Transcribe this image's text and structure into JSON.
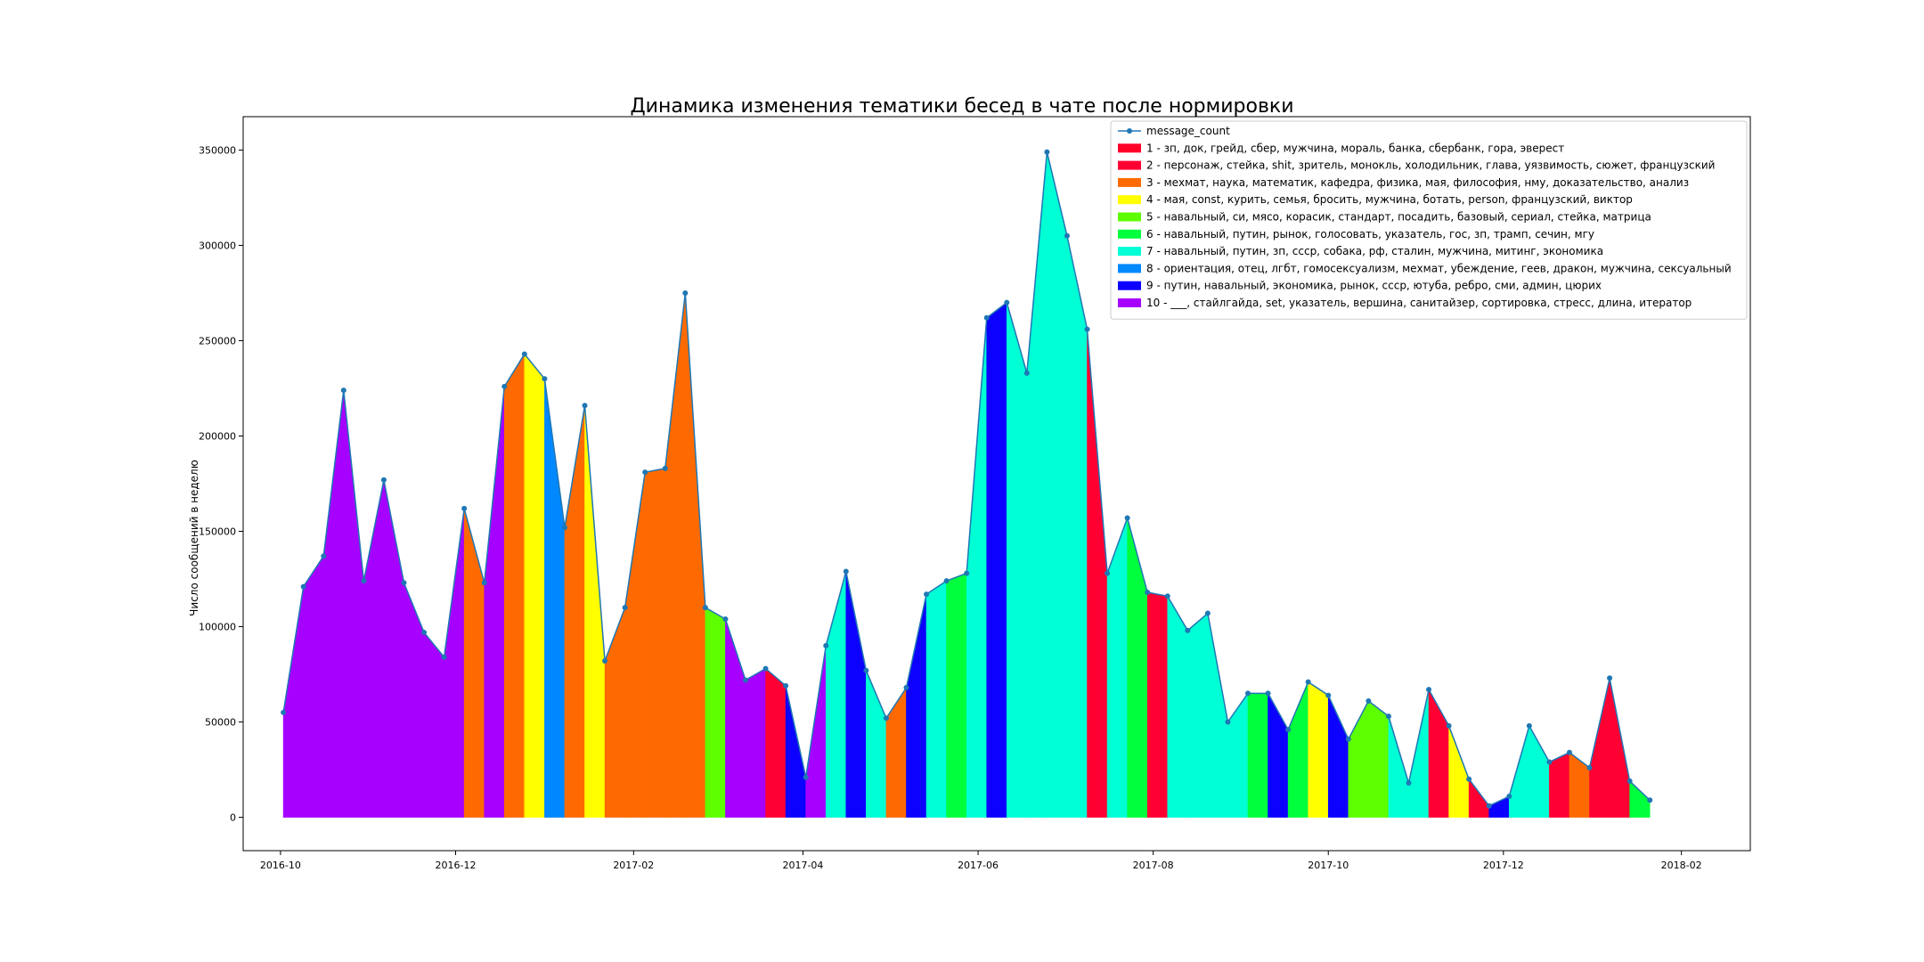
{
  "chart_data": {
    "type": "area",
    "title": "Динамика изменения тематики бесед в чате после нормировки",
    "xlabel": "",
    "ylabel": "Число сообщений в неделю",
    "x_start_date": "2016-10-02",
    "x_step_days": 7,
    "xlim": [
      "2016-09-18",
      "2018-02-25"
    ],
    "ylim": [
      -17500,
      367500
    ],
    "xticks": [
      {
        "date": "2016-10-01",
        "label": "2016-10"
      },
      {
        "date": "2016-12-01",
        "label": "2016-12"
      },
      {
        "date": "2017-02-01",
        "label": "2017-02"
      },
      {
        "date": "2017-04-01",
        "label": "2017-04"
      },
      {
        "date": "2017-06-01",
        "label": "2017-06"
      },
      {
        "date": "2017-08-01",
        "label": "2017-08"
      },
      {
        "date": "2017-10-01",
        "label": "2017-10"
      },
      {
        "date": "2017-12-01",
        "label": "2017-12"
      },
      {
        "date": "2018-02-01",
        "label": "2018-02"
      }
    ],
    "yticks": [
      {
        "value": 0,
        "label": "0"
      },
      {
        "value": 50000,
        "label": "50000"
      },
      {
        "value": 100000,
        "label": "100000"
      },
      {
        "value": 150000,
        "label": "150000"
      },
      {
        "value": 200000,
        "label": "200000"
      },
      {
        "value": 250000,
        "label": "250000"
      },
      {
        "value": 300000,
        "label": "300000"
      },
      {
        "value": 350000,
        "label": "350000"
      }
    ],
    "series": [
      {
        "name": "message_count",
        "line_color": "#1f77b4",
        "values": [
          55000,
          121000,
          137000,
          224000,
          124000,
          177000,
          123000,
          97000,
          84000,
          162000,
          123000,
          226000,
          243000,
          230000,
          152000,
          216000,
          82000,
          110000,
          181000,
          183000,
          275000,
          110000,
          104000,
          72000,
          78000,
          69000,
          21000,
          90000,
          129000,
          77000,
          52000,
          68000,
          117000,
          124000,
          128000,
          262000,
          270000,
          233000,
          349000,
          305000,
          256000,
          128000,
          157000,
          118000,
          116000,
          98000,
          107000,
          50000,
          65000,
          65000,
          46000,
          71000,
          64000,
          41000,
          61000,
          53000,
          18000,
          67000,
          48000,
          20000,
          6000,
          11000,
          48000,
          29000,
          34000,
          26000,
          73000,
          19000,
          9000
        ],
        "topics": [
          10,
          10,
          10,
          10,
          10,
          10,
          10,
          10,
          10,
          3,
          10,
          3,
          4,
          8,
          3,
          4,
          3,
          3,
          3,
          3,
          3,
          5,
          10,
          10,
          2,
          9,
          10,
          7,
          9,
          7,
          3,
          9,
          7,
          6,
          7,
          9,
          7,
          7,
          7,
          7,
          2,
          7,
          6,
          2,
          7,
          7,
          7,
          7,
          6,
          9,
          6,
          4,
          9,
          5,
          5,
          7,
          7,
          2,
          4,
          2,
          9,
          7,
          7,
          2,
          3,
          2,
          2,
          6
        ]
      }
    ],
    "legend": {
      "placement": "top-right",
      "line_entry": "message_count",
      "entries": [
        {
          "topic": 1,
          "label": "1 - зп, док, грейд, сбер, мужчина, мораль, банка, сбербанк, гора, эверест",
          "color": "#ff0029"
        },
        {
          "topic": 2,
          "label": "2 - персонаж, стейка, shit, зритель, монокль, холодильник, глава, уязвимость, сюжет, французский",
          "color": "#ff0033"
        },
        {
          "topic": 3,
          "label": "3 - мехмат, наука, математик, кафедра, физика, мая, философия, нму, доказательство, анализ",
          "color": "#ff6a00"
        },
        {
          "topic": 4,
          "label": "4 - мая, const, курить, семья, бросить, мужчина, ботать, person, французский, виктор",
          "color": "#ffff00"
        },
        {
          "topic": 5,
          "label": "5 - навальный, си, мясо, корасик, стандарт, посадить, базовый, сериал, стейка, матрица",
          "color": "#5dff00"
        },
        {
          "topic": 6,
          "label": "6 - навальный, путин, рынок, голосовать, указатель, гос, зп, трамп, сечин, мгу",
          "color": "#00ff3c"
        },
        {
          "topic": 7,
          "label": "7 - навальный, путин, зп, ссср, собака, рф, сталин, мужчина, митинг, экономика",
          "color": "#00ffd5"
        },
        {
          "topic": 8,
          "label": "8 - ориентация, отец, лгбт, гомосексуализм, мехмат, убеждение, геев, дракон, мужчина, сексуальный",
          "color": "#0088ff"
        },
        {
          "topic": 9,
          "label": "9 - путин, навальный, экономика, рынок, ссср, ютуба, ребро, сми, админ, цюрих",
          "color": "#0c00ff"
        },
        {
          "topic": 10,
          "label": "10 - ___, стайлгайда, set, указатель, вершина, санитайзер, сортировка, стресс, длина, итератор",
          "color": "#a600ff"
        }
      ]
    },
    "grid": false
  }
}
